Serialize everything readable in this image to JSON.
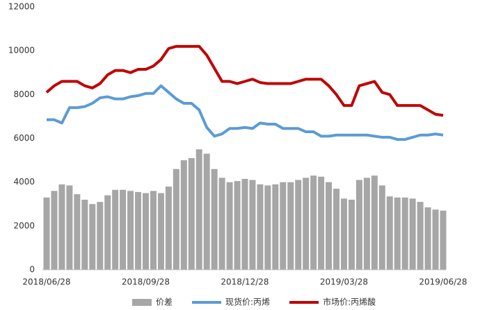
{
  "chart_data": {
    "type": "bar_line",
    "categories": [
      "2018/06/28",
      null,
      null,
      null,
      null,
      null,
      null,
      null,
      null,
      null,
      null,
      null,
      null,
      "2018/09/28",
      null,
      null,
      null,
      null,
      null,
      null,
      null,
      null,
      null,
      null,
      null,
      null,
      "2018/12/28",
      null,
      null,
      null,
      null,
      null,
      null,
      null,
      null,
      null,
      null,
      null,
      null,
      "2019/03/28",
      null,
      null,
      null,
      null,
      null,
      null,
      null,
      null,
      null,
      null,
      null,
      null,
      "2019/06/28"
    ],
    "series": [
      {
        "name": "价差",
        "type": "bar",
        "color": "#a6a6a6",
        "values": [
          3300,
          3600,
          3900,
          3850,
          3450,
          3200,
          3000,
          3100,
          3400,
          3650,
          3650,
          3600,
          3550,
          3500,
          3600,
          3500,
          3800,
          4600,
          5000,
          5100,
          5500,
          5300,
          4600,
          4200,
          4000,
          4050,
          4150,
          4100,
          3900,
          3850,
          3900,
          4000,
          4000,
          4100,
          4200,
          4300,
          4250,
          4000,
          3700,
          3250,
          3200,
          4100,
          4200,
          4300,
          3850,
          3350,
          3300,
          3300,
          3250,
          3100,
          2850,
          2750,
          2700
        ]
      },
      {
        "name": "现货价:丙烯",
        "type": "line",
        "color": "#5b9bd5",
        "values": [
          6850,
          6850,
          6700,
          7400,
          7400,
          7450,
          7600,
          7850,
          7900,
          7800,
          7800,
          7900,
          7950,
          8050,
          8050,
          8400,
          8100,
          7800,
          7600,
          7600,
          7300,
          6500,
          6100,
          6200,
          6450,
          6450,
          6500,
          6450,
          6700,
          6650,
          6650,
          6450,
          6450,
          6450,
          6300,
          6300,
          6100,
          6100,
          6150,
          6150,
          6150,
          6150,
          6150,
          6100,
          6050,
          6050,
          5950,
          5950,
          6050,
          6150,
          6150,
          6200,
          6150
        ]
      },
      {
        "name": "市场价:丙烯酸",
        "type": "line",
        "color": "#c00000",
        "values": [
          8100,
          8400,
          8600,
          8600,
          8600,
          8400,
          8300,
          8500,
          8900,
          9100,
          9100,
          9000,
          9150,
          9150,
          9300,
          9600,
          10100,
          10200,
          10200,
          10200,
          10200,
          9800,
          9200,
          8600,
          8600,
          8500,
          8600,
          8700,
          8550,
          8500,
          8500,
          8500,
          8500,
          8600,
          8700,
          8700,
          8700,
          8400,
          8000,
          7500,
          7500,
          8400,
          8500,
          8600,
          8100,
          8000,
          7500,
          7500,
          7500,
          7500,
          7300,
          7100,
          7050
        ]
      }
    ],
    "ylim": [
      0,
      12000
    ],
    "yticks": [
      0,
      2000,
      4000,
      6000,
      8000,
      10000,
      12000
    ],
    "grid": false,
    "legend": "bottom"
  }
}
